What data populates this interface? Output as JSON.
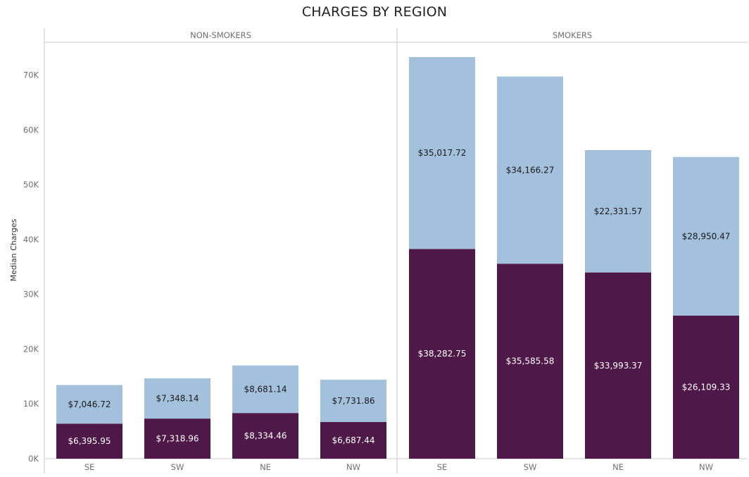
{
  "colors": {
    "charges_below": "#4e1848",
    "charges_above": "#a3c0dc",
    "label_on_dark": "#ffffff",
    "label_on_light": "#1a1a1a",
    "gridline": "#d4d4d4"
  },
  "chart_data": {
    "type": "bar",
    "stacked": true,
    "title": "CHARGES BY REGION",
    "ylabel": "Median Charges",
    "ylim": [
      0,
      76000
    ],
    "yticks": [
      0,
      10000,
      20000,
      30000,
      40000,
      50000,
      60000,
      70000
    ],
    "ytick_labels": [
      "0K",
      "10K",
      "20K",
      "30K",
      "40K",
      "50K",
      "60K",
      "70K"
    ],
    "panels": [
      {
        "name": "NON-SMOKERS",
        "categories": [
          "SE",
          "SW",
          "NE",
          "NW"
        ],
        "series": [
          {
            "values": [
              6395.95,
              7318.96,
              8334.46,
              6687.44
            ],
            "labels": [
              "$6,395.95",
              "$7,318.96",
              "$8,334.46",
              "$6,687.44"
            ]
          },
          {
            "values": [
              7046.72,
              7348.14,
              8681.14,
              7731.86
            ],
            "labels": [
              "$7,046.72",
              "$7,348.14",
              "$8,681.14",
              "$7,731.86"
            ]
          }
        ]
      },
      {
        "name": "SMOKERS",
        "categories": [
          "SE",
          "SW",
          "NE",
          "NW"
        ],
        "series": [
          {
            "values": [
              38282.75,
              35585.58,
              33993.37,
              26109.33
            ],
            "labels": [
              "$38,282.75",
              "$35,585.58",
              "$33,993.37",
              "$26,109.33"
            ]
          },
          {
            "values": [
              35017.72,
              34166.27,
              22331.57,
              28950.47
            ],
            "labels": [
              "$35,017.72",
              "$34,166.27",
              "$22,331.57",
              "$28,950.47"
            ]
          }
        ]
      }
    ]
  }
}
